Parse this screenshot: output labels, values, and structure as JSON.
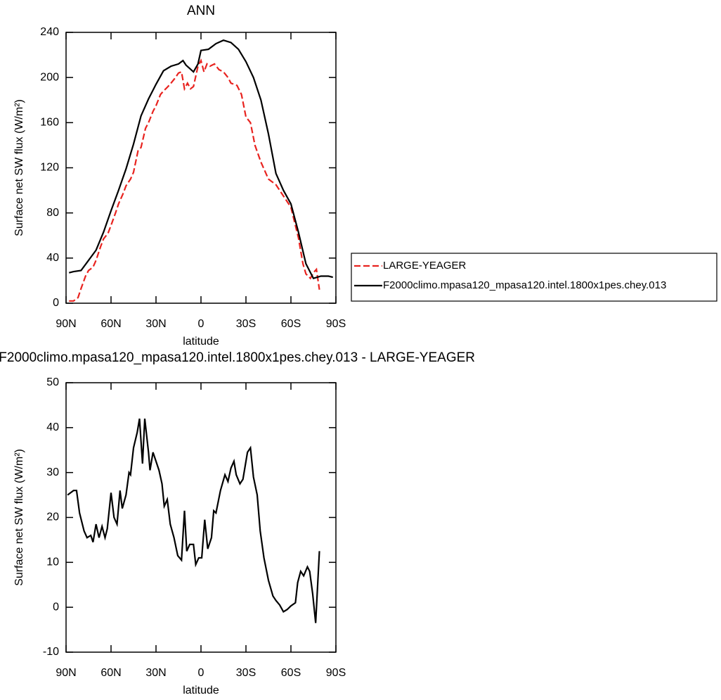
{
  "chart_data": [
    {
      "type": "line",
      "title": "ANN",
      "xlabel": "latitude",
      "ylabel": "Surface net SW flux (W/m²)",
      "xlim": [
        90,
        -90
      ],
      "xticks": [
        {
          "value": 90,
          "label": "90N"
        },
        {
          "value": 60,
          "label": "60N"
        },
        {
          "value": 30,
          "label": "30N"
        },
        0,
        {
          "value": -30,
          "label": "30S"
        },
        {
          "value": -60,
          "label": "60S"
        },
        {
          "value": -90,
          "label": "90S"
        }
      ],
      "ylim": [
        0,
        240
      ],
      "yticks": [
        0,
        40,
        80,
        120,
        160,
        200,
        240
      ],
      "legend": "right",
      "series": [
        {
          "name": "LARGE-YEAGER",
          "color": "#e8231f",
          "dashed": true,
          "x": [
            88,
            85,
            82,
            80,
            77,
            75,
            72,
            70,
            67,
            65,
            62,
            60,
            57,
            55,
            52,
            50,
            47,
            45,
            42,
            40,
            37,
            35,
            32,
            30,
            27,
            25,
            22,
            20,
            17,
            15,
            13,
            11,
            9,
            7,
            5,
            2,
            0,
            -2,
            -4,
            -6,
            -9,
            -12,
            -15,
            -18,
            -20,
            -24,
            -27,
            -30,
            -33,
            -36,
            -40,
            -45,
            -50,
            -55,
            -60,
            -65,
            -68,
            -70,
            -73,
            -75,
            -77,
            -79
          ],
          "values": [
            2,
            2,
            5,
            13,
            24,
            29,
            32,
            38,
            50,
            57,
            62,
            69,
            80,
            88,
            97,
            104,
            110,
            116,
            135,
            138,
            155,
            160,
            170,
            175,
            185,
            188,
            192,
            195,
            200,
            204,
            205,
            190,
            195,
            190,
            192,
            210,
            215,
            205,
            212,
            210,
            212,
            207,
            205,
            200,
            195,
            193,
            185,
            165,
            160,
            140,
            125,
            110,
            105,
            95,
            85,
            58,
            35,
            26,
            22,
            27,
            30,
            12
          ]
        },
        {
          "name": "F2000climo.mpasa120_mpasa120.intel.1800x1pes.chey.013",
          "color": "#000000",
          "dashed": false,
          "x": [
            88,
            85,
            80,
            75,
            70,
            65,
            60,
            55,
            50,
            45,
            40,
            35,
            30,
            25,
            20,
            15,
            12,
            10,
            5,
            2,
            0,
            -5,
            -10,
            -15,
            -20,
            -25,
            -30,
            -35,
            -40,
            -45,
            -50,
            -55,
            -60,
            -65,
            -70,
            -75,
            -80,
            -85,
            -88
          ],
          "values": [
            27,
            28,
            29,
            38,
            47,
            63,
            82,
            100,
            119,
            141,
            166,
            181,
            194,
            206,
            210,
            212,
            215,
            211,
            205,
            212,
            224,
            225,
            230,
            233,
            231,
            225,
            214,
            200,
            180,
            150,
            115,
            100,
            88,
            63,
            35,
            22,
            24,
            24,
            23
          ]
        }
      ]
    },
    {
      "type": "line",
      "title": "F2000climo.mpasa120_mpasa120.intel.1800x1pes.chey.013 - LARGE-YEAGER",
      "xlabel": "latitude",
      "ylabel": "Surface net SW flux (W/m²)",
      "xlim": [
        90,
        -90
      ],
      "xticks": [
        {
          "value": 90,
          "label": "90N"
        },
        {
          "value": 60,
          "label": "60N"
        },
        {
          "value": 30,
          "label": "30N"
        },
        0,
        {
          "value": -30,
          "label": "30S"
        },
        {
          "value": -60,
          "label": "60S"
        },
        {
          "value": -90,
          "label": "90S"
        }
      ],
      "ylim": [
        -10,
        50
      ],
      "yticks": [
        -10,
        0,
        10,
        20,
        30,
        40,
        50
      ],
      "series": [
        {
          "color": "#000000",
          "dashed": false,
          "x": [
            89,
            85,
            83,
            81,
            78,
            76,
            73.5,
            72,
            70,
            68,
            66,
            64,
            62.5,
            60,
            58,
            56,
            54,
            52.5,
            50,
            48,
            47,
            45,
            42.5,
            41,
            39,
            37.5,
            35,
            34,
            32,
            28,
            26,
            24.5,
            22.5,
            20.5,
            18,
            15.5,
            13,
            11,
            9.5,
            7.5,
            5,
            3.5,
            1.5,
            -0.5,
            -2.5,
            -4.5,
            -7,
            -8.5,
            -10,
            -13,
            -16,
            -18,
            -20,
            -22,
            -23.5,
            -26,
            -28,
            -31,
            -33,
            -35,
            -37.5,
            -39.5,
            -42,
            -45,
            -48,
            -50,
            -52.5,
            -55,
            -57.5,
            -60,
            -63,
            -64.5,
            -66.5,
            -68.5,
            -71,
            -72.5,
            -74.5,
            -76.5,
            -79
          ],
          "values": [
            25,
            26,
            26,
            21,
            17,
            15.5,
            16,
            14.5,
            18.5,
            15.5,
            18,
            15.5,
            17.5,
            25.5,
            20,
            18.5,
            26,
            22,
            25,
            30,
            29.5,
            35.5,
            39,
            42,
            32,
            42,
            34.5,
            30.5,
            34.5,
            30.5,
            27.5,
            22.5,
            24,
            18.5,
            15.5,
            11.5,
            10.5,
            21.5,
            12.5,
            14,
            14,
            9.5,
            11,
            11,
            19.5,
            13,
            15.5,
            21.5,
            21,
            26,
            29.5,
            28,
            31,
            32.5,
            29.5,
            27.5,
            28.5,
            34.5,
            35.5,
            29,
            25,
            17,
            11,
            6,
            2.5,
            1.5,
            0.5,
            -1,
            -0.5,
            0.3,
            1,
            5.5,
            8,
            7,
            9,
            8,
            3,
            -3.5,
            12.5
          ]
        }
      ]
    }
  ]
}
